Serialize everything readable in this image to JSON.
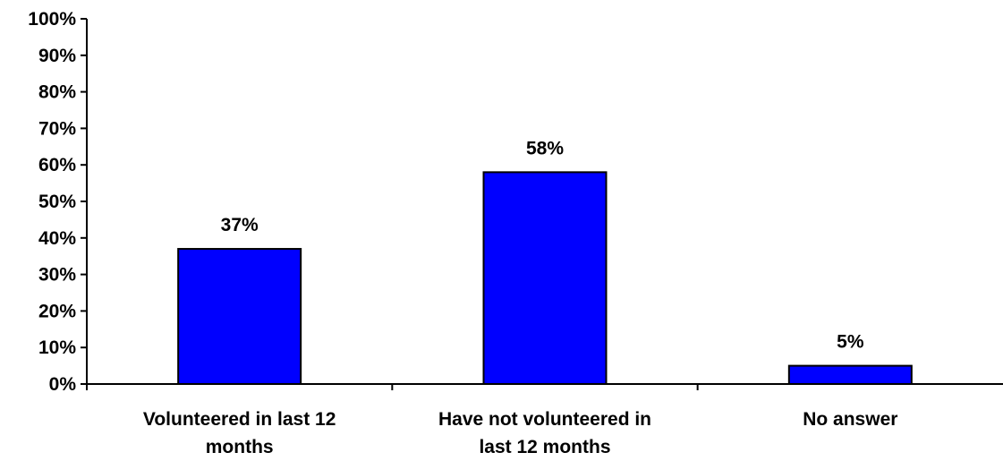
{
  "chart_data": {
    "type": "bar",
    "categories": [
      [
        "Volunteered in last 12",
        "months"
      ],
      [
        "Have not volunteered in",
        "last 12 months"
      ],
      [
        "No answer"
      ]
    ],
    "values": [
      37,
      58,
      5
    ],
    "data_labels": [
      "37%",
      "58%",
      "5%"
    ],
    "y_ticks": [
      "0%",
      "10%",
      "20%",
      "30%",
      "40%",
      "50%",
      "60%",
      "70%",
      "80%",
      "90%",
      "100%"
    ],
    "ylim": [
      0,
      100
    ],
    "bar_color": "#0000ff",
    "grid": false,
    "legend": "none"
  }
}
